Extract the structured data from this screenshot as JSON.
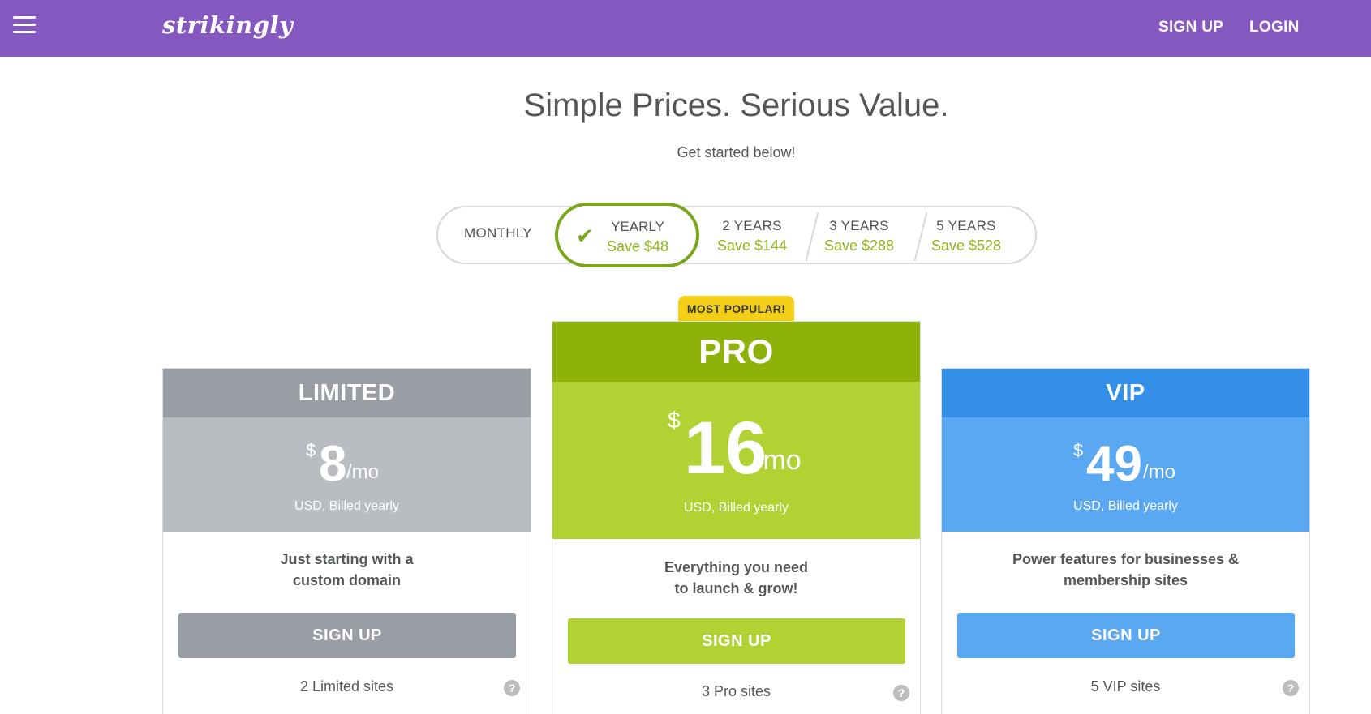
{
  "header": {
    "logo": "strikingly",
    "nav": {
      "signup": "SIGN UP",
      "login": "LOGIN"
    },
    "menu_icon": "hamburger-menu-icon"
  },
  "hero": {
    "title": "Simple Prices. Serious Value.",
    "subtitle": "Get started below!"
  },
  "billing_toggle": {
    "selected": "yearly",
    "options": [
      {
        "id": "monthly",
        "label": "MONTHLY",
        "save": ""
      },
      {
        "id": "yearly",
        "label": "YEARLY",
        "save": "Save $48"
      },
      {
        "id": "2years",
        "label": "2 YEARS",
        "save": "Save $144"
      },
      {
        "id": "3years",
        "label": "3 YEARS",
        "save": "Save $288"
      },
      {
        "id": "5years",
        "label": "5 YEARS",
        "save": "Save $528"
      }
    ]
  },
  "plans": {
    "badge": "MOST POPULAR!",
    "limited": {
      "name": "LIMITED",
      "currency": "$",
      "amount": "8",
      "period": "/mo",
      "billed": "USD, Billed yearly",
      "desc_line1": "Just starting with a",
      "desc_line2": "custom domain",
      "button": "SIGN UP",
      "feature": "2 Limited sites"
    },
    "pro": {
      "name": "PRO",
      "currency": "$",
      "amount": "16",
      "period": "/mo",
      "billed": "USD, Billed yearly",
      "desc_line1": "Everything you need",
      "desc_line2": "to launch & grow!",
      "button": "SIGN UP",
      "feature": "3 Pro sites"
    },
    "vip": {
      "name": "VIP",
      "currency": "$",
      "amount": "49",
      "period": "/mo",
      "billed": "USD, Billed yearly",
      "desc_line1": "Power features for businesses &",
      "desc_line2": "membership sites",
      "button": "SIGN UP",
      "feature": "5 VIP sites"
    }
  },
  "colors": {
    "brand": "#8558bf",
    "green": "#8fb20a",
    "blue": "#338fe8",
    "gray": "#999ea4",
    "badge": "#f5cf17"
  }
}
